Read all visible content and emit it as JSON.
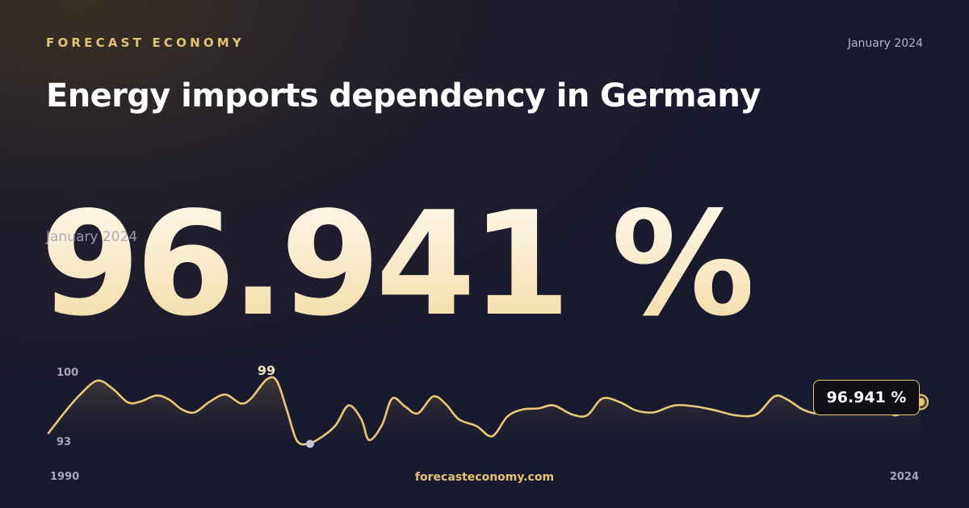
{
  "header": {
    "brand": "FORECAST ECONOMY",
    "date": "January 2024"
  },
  "title": "Energy imports dependency in Germany",
  "headline": {
    "value": "96.941 %",
    "date": "January 2024"
  },
  "footer": {
    "site": "forecasteconomy.com"
  },
  "colors": {
    "accent": "#e3c274",
    "line": "#e6c878",
    "min_marker": "#c4c6e0",
    "background": "#1a1a2e"
  },
  "chart_data": {
    "type": "area",
    "title": "",
    "xlabel": "",
    "ylabel": "",
    "xlim": [
      1990,
      2024
    ],
    "ylim": [
      93,
      100
    ],
    "x_tick_labels": [
      "1990",
      "2024"
    ],
    "y_tick_labels": [
      "100",
      "93"
    ],
    "series": [
      {
        "values": [
          [
            1990.0,
            93.8
          ],
          [
            1990.6,
            95.8
          ],
          [
            1991.2,
            97.6
          ],
          [
            1991.9,
            99.1
          ],
          [
            1992.5,
            98.3
          ],
          [
            1993.1,
            96.9
          ],
          [
            1993.6,
            97.0
          ],
          [
            1994.2,
            97.6
          ],
          [
            1994.7,
            97.2
          ],
          [
            1995.2,
            96.2
          ],
          [
            1995.7,
            95.9
          ],
          [
            1996.3,
            97.0
          ],
          [
            1996.9,
            97.7
          ],
          [
            1997.5,
            96.8
          ],
          [
            1997.9,
            97.3
          ],
          [
            1998.5,
            99.2
          ],
          [
            1998.9,
            99.1
          ],
          [
            1999.3,
            96.1
          ],
          [
            1999.7,
            93.0
          ],
          [
            2000.2,
            92.8
          ],
          [
            2000.7,
            93.5
          ],
          [
            2001.2,
            94.6
          ],
          [
            2001.7,
            96.6
          ],
          [
            2002.2,
            95.2
          ],
          [
            2002.5,
            93.1
          ],
          [
            2003.0,
            94.6
          ],
          [
            2003.4,
            97.3
          ],
          [
            2003.9,
            96.5
          ],
          [
            2004.4,
            95.8
          ],
          [
            2005.0,
            97.5
          ],
          [
            2005.5,
            96.7
          ],
          [
            2006.0,
            95.2
          ],
          [
            2006.7,
            94.5
          ],
          [
            2007.3,
            93.5
          ],
          [
            2007.9,
            95.5
          ],
          [
            2008.5,
            96.2
          ],
          [
            2009.1,
            96.3
          ],
          [
            2009.7,
            96.6
          ],
          [
            2010.4,
            95.7
          ],
          [
            2011.0,
            95.6
          ],
          [
            2011.6,
            97.3
          ],
          [
            2012.3,
            96.9
          ],
          [
            2012.9,
            96.1
          ],
          [
            2013.6,
            95.9
          ],
          [
            2014.4,
            96.6
          ],
          [
            2015.2,
            96.5
          ],
          [
            2016.0,
            96.1
          ],
          [
            2016.8,
            95.6
          ],
          [
            2017.6,
            95.7
          ],
          [
            2018.3,
            97.5
          ],
          [
            2018.8,
            97.2
          ],
          [
            2019.4,
            96.2
          ],
          [
            2020.0,
            95.8
          ],
          [
            2020.5,
            96.6
          ],
          [
            2021.0,
            96.4
          ],
          [
            2021.5,
            96.9
          ],
          [
            2022.0,
            96.5
          ],
          [
            2022.5,
            96.4
          ],
          [
            2023.0,
            95.6
          ],
          [
            2023.5,
            96.2
          ],
          [
            2024.0,
            96.941
          ]
        ]
      }
    ],
    "annotations": [
      {
        "label": "99",
        "x": 1998.5,
        "y": 99.2
      },
      {
        "label": "96.941 %",
        "x": 2024.0,
        "y": 96.941
      }
    ],
    "min_point": {
      "x": 2000.2,
      "y": 92.8
    },
    "grid": false,
    "legend": "none"
  }
}
